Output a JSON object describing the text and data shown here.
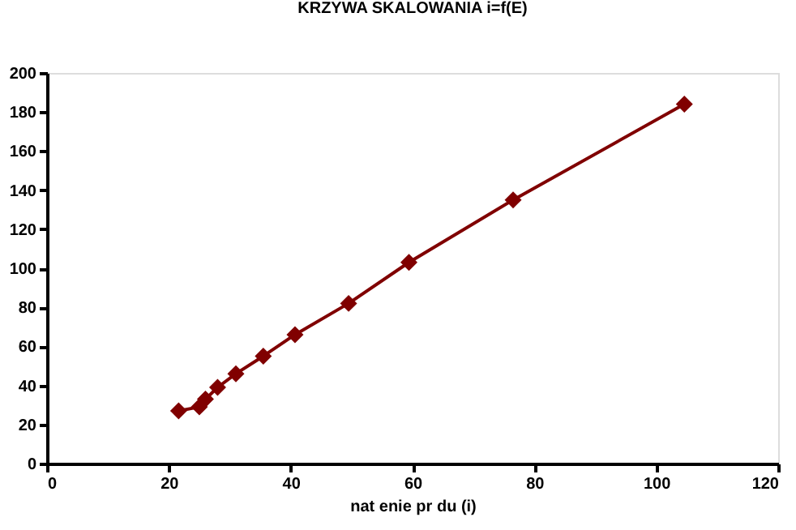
{
  "chart_data": {
    "type": "line",
    "title": "KRZYWA SKALOWANIA  i=f(E)",
    "xlabel": "nat   enie pr  du (i)",
    "x": [
      21.6,
      25,
      26,
      28,
      31,
      35.5,
      40.7,
      49.5,
      59.4,
      76.5,
      104.6
    ],
    "series": [
      {
        "color": "#800000",
        "values": [
          27,
          29,
          33,
          39,
          46,
          55,
          66,
          82,
          103,
          135,
          184
        ]
      }
    ],
    "xlim": [
      0,
      120
    ],
    "xticks": [
      0,
      20,
      40,
      60,
      80,
      100,
      120
    ],
    "ylim": [
      0,
      200
    ],
    "yticks": [
      0,
      20,
      40,
      60,
      80,
      100,
      120,
      140,
      160,
      180,
      200
    ],
    "marker": "diamond",
    "line_style": "solid",
    "grid": false,
    "legend": false
  }
}
